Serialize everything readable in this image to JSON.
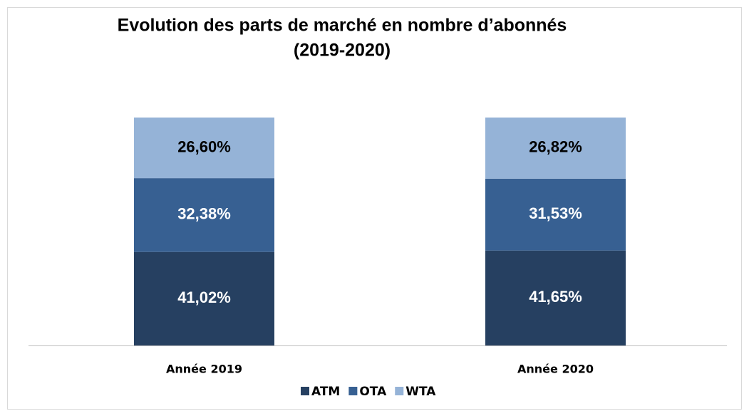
{
  "chart_data": {
    "type": "stacked_bar",
    "title": [
      "Evolution des parts de marché en nombre d’abonnés",
      "(2019-2020)"
    ],
    "categories": [
      "Année  2019",
      "Année  2020"
    ],
    "series": [
      {
        "name": "ATM",
        "color": "#264061",
        "label_color": "#ffffff",
        "values": [
          41.02,
          41.65
        ],
        "value_labels": [
          "41,02%",
          "41,65%"
        ]
      },
      {
        "name": "OTA",
        "color": "#376092",
        "label_color": "#ffffff",
        "values": [
          32.38,
          31.53
        ],
        "value_labels": [
          "32,38%",
          "31,53%"
        ]
      },
      {
        "name": "WTA",
        "color": "#95b3d7",
        "label_color": "#000000",
        "values": [
          26.6,
          26.82
        ],
        "value_labels": [
          "26,60%",
          "26,82%"
        ]
      }
    ],
    "legend": "bottom"
  }
}
